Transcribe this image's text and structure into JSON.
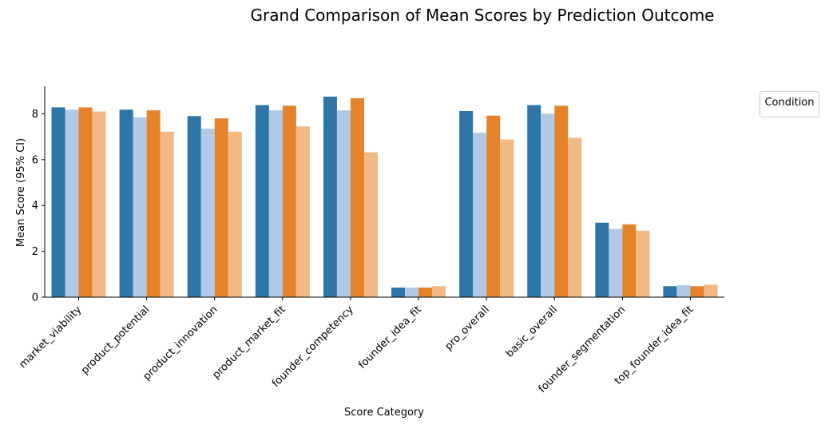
{
  "chart_data": {
    "type": "bar",
    "title": "Grand Comparison of Mean Scores by Prediction Outcome",
    "xlabel": "Score Category",
    "ylabel": "Mean Score (95% CI)",
    "ylim": [
      0,
      9.2
    ],
    "yticks": [
      0,
      2,
      4,
      6,
      8
    ],
    "grid": false,
    "legend": {
      "title": "Condition",
      "placement": "outside-top-right",
      "entries": []
    },
    "categories": [
      "market_viability",
      "product_potential",
      "product_innovation",
      "product_market_fit",
      "founder_competency",
      "founder_idea_fit",
      "pro_overall",
      "basic_overall",
      "founder_segmentation",
      "top_founder_idea_fit"
    ],
    "series": [
      {
        "color": "#2e76a8",
        "values": [
          8.28,
          8.18,
          7.9,
          8.38,
          8.75,
          0.42,
          8.12,
          8.38,
          3.25,
          0.48
        ]
      },
      {
        "color": "#b1c8e6",
        "values": [
          8.18,
          7.85,
          7.35,
          8.15,
          8.15,
          0.42,
          7.18,
          8.0,
          2.98,
          0.52
        ]
      },
      {
        "color": "#e4832c",
        "values": [
          8.28,
          8.15,
          7.8,
          8.35,
          8.68,
          0.42,
          7.92,
          8.35,
          3.18,
          0.48
        ]
      },
      {
        "color": "#f2b985",
        "values": [
          8.1,
          7.22,
          7.22,
          7.45,
          6.32,
          0.48,
          6.88,
          6.95,
          2.9,
          0.55
        ]
      }
    ]
  }
}
